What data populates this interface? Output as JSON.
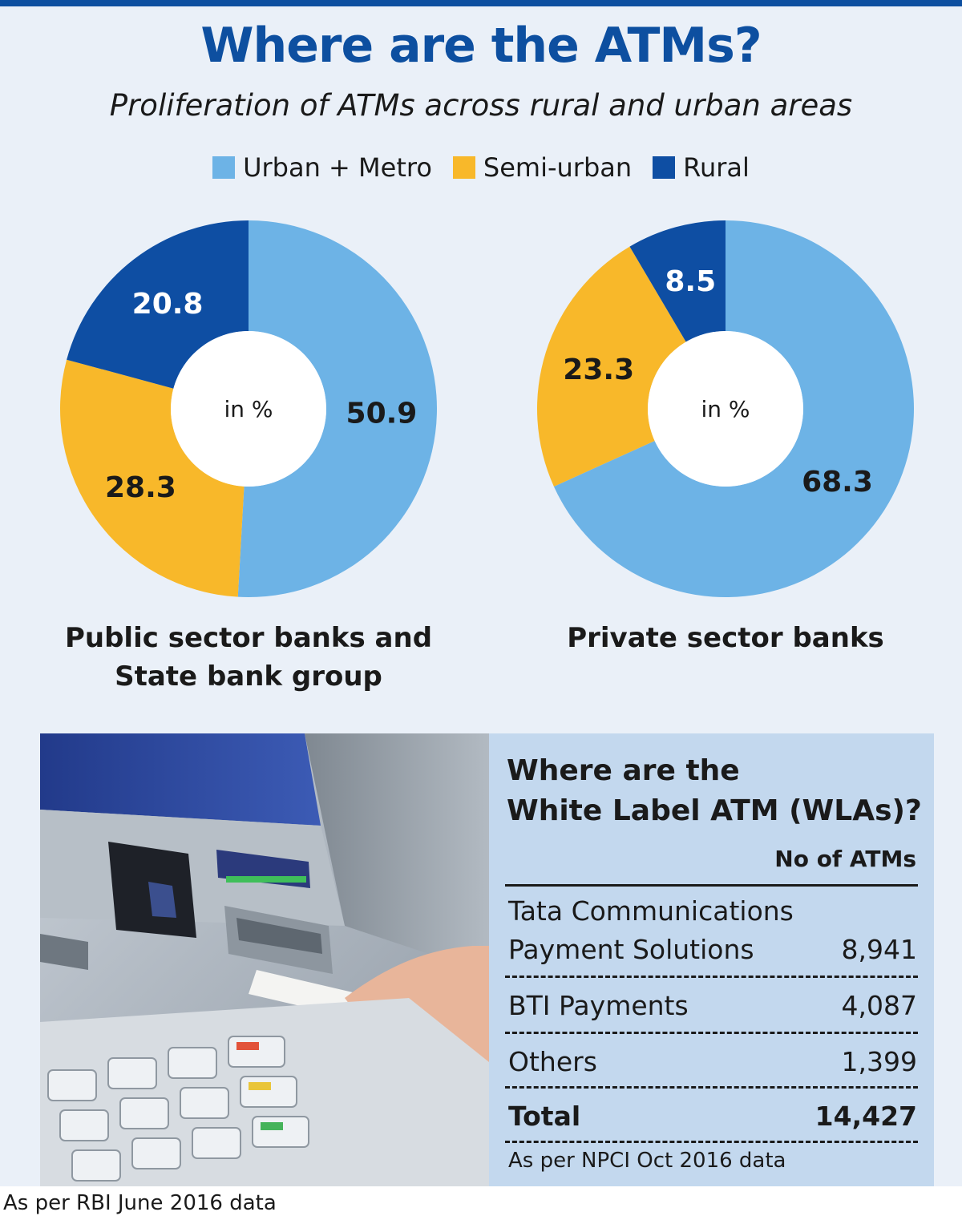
{
  "title": "Where are the ATMs?",
  "subtitle": "Proliferation of ATMs across rural and urban areas",
  "legend": [
    {
      "label": "Urban + Metro",
      "color": "#6db3e6"
    },
    {
      "label": "Semi-urban",
      "color": "#f8b82a"
    },
    {
      "label": "Rural",
      "color": "#0e4ea3"
    }
  ],
  "chart_data": [
    {
      "type": "pie",
      "variant": "donut",
      "title": "Public sector banks and State bank group",
      "title_lines": [
        "Public sector banks and",
        "State bank group"
      ],
      "center_label": "in %",
      "categories": [
        "Urban + Metro",
        "Semi-urban",
        "Rural"
      ],
      "values": [
        50.9,
        28.3,
        20.8
      ],
      "labels": [
        "50.9",
        "28.3",
        "20.8"
      ],
      "colors": [
        "#6db3e6",
        "#f8b82a",
        "#0e4ea3"
      ],
      "label_colors": [
        "#1a1a1a",
        "#1a1a1a",
        "#ffffff"
      ]
    },
    {
      "type": "pie",
      "variant": "donut",
      "title": "Private sector banks",
      "title_lines": [
        "Private sector banks"
      ],
      "center_label": "in %",
      "categories": [
        "Urban + Metro",
        "Semi-urban",
        "Rural"
      ],
      "values": [
        68.3,
        23.3,
        8.5
      ],
      "labels": [
        "68.3",
        "23.3",
        "8.5"
      ],
      "colors": [
        "#6db3e6",
        "#f8b82a",
        "#0e4ea3"
      ],
      "label_colors": [
        "#1a1a1a",
        "#1a1a1a",
        "#ffffff"
      ]
    }
  ],
  "wla": {
    "title_lines": [
      "Where are the",
      "White Label ATM (WLAs)?"
    ],
    "column_header": "No of ATMs",
    "rows": [
      {
        "name_lines": [
          "Tata Communications",
          "Payment Solutions"
        ],
        "value": "8,941"
      },
      {
        "name_lines": [
          "BTI Payments"
        ],
        "value": "4,087"
      },
      {
        "name_lines": [
          "Others"
        ],
        "value": "1,399"
      }
    ],
    "total": {
      "name": "Total",
      "value": "14,427"
    },
    "source": "As per NPCI Oct 2016 data"
  },
  "footnote": "As per RBI June 2016 data"
}
